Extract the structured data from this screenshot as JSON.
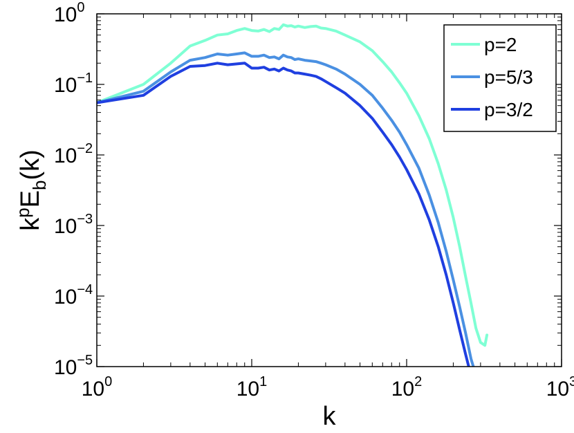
{
  "chart_data": {
    "type": "line",
    "title": "",
    "xlabel": "k",
    "ylabel": {
      "base": "k",
      "sup": "p",
      "mid": "E",
      "sub": "b",
      "tail": "(k)"
    },
    "x_scale": "log",
    "y_scale": "log",
    "xlim": [
      1,
      1000
    ],
    "ylim": [
      1e-05,
      1
    ],
    "x_ticks": [
      {
        "value": 1,
        "base": "10",
        "exp": "0"
      },
      {
        "value": 10,
        "base": "10",
        "exp": "1"
      },
      {
        "value": 100,
        "base": "10",
        "exp": "2"
      },
      {
        "value": 1000,
        "base": "10",
        "exp": "3"
      }
    ],
    "y_ticks": [
      {
        "value": 1,
        "base": "10",
        "exp": "0"
      },
      {
        "value": 0.1,
        "base": "10",
        "exp": "−1"
      },
      {
        "value": 0.01,
        "base": "10",
        "exp": "−2"
      },
      {
        "value": 0.001,
        "base": "10",
        "exp": "−3"
      },
      {
        "value": 0.0001,
        "base": "10",
        "exp": "−4"
      },
      {
        "value": 1e-05,
        "base": "10",
        "exp": "−5"
      }
    ],
    "grid": false,
    "legend": {
      "position": "top-right"
    },
    "series": [
      {
        "name": "p=2",
        "color": "#7fffd4",
        "points": [
          [
            1,
            0.055
          ],
          [
            2,
            0.1
          ],
          [
            3,
            0.2
          ],
          [
            4,
            0.35
          ],
          [
            5,
            0.42
          ],
          [
            6,
            0.5
          ],
          [
            7,
            0.52
          ],
          [
            8,
            0.58
          ],
          [
            9,
            0.62
          ],
          [
            10,
            0.58
          ],
          [
            11,
            0.57
          ],
          [
            12,
            0.6
          ],
          [
            13,
            0.56
          ],
          [
            14,
            0.62
          ],
          [
            15,
            0.6
          ],
          [
            16,
            0.7
          ],
          [
            17,
            0.67
          ],
          [
            18,
            0.68
          ],
          [
            19,
            0.65
          ],
          [
            20,
            0.67
          ],
          [
            22,
            0.64
          ],
          [
            24,
            0.66
          ],
          [
            26,
            0.67
          ],
          [
            28,
            0.63
          ],
          [
            30,
            0.62
          ],
          [
            35,
            0.57
          ],
          [
            40,
            0.5
          ],
          [
            50,
            0.4
          ],
          [
            60,
            0.3
          ],
          [
            70,
            0.21
          ],
          [
            80,
            0.15
          ],
          [
            90,
            0.105
          ],
          [
            100,
            0.075
          ],
          [
            120,
            0.036
          ],
          [
            140,
            0.017
          ],
          [
            160,
            0.0075
          ],
          [
            180,
            0.0032
          ],
          [
            200,
            0.0013
          ],
          [
            220,
            0.0005
          ],
          [
            240,
            0.00019
          ],
          [
            260,
            8e-05
          ],
          [
            280,
            3.5e-05
          ],
          [
            300,
            2.2e-05
          ],
          [
            320,
            2e-05
          ],
          [
            330,
            2.8e-05
          ]
        ]
      },
      {
        "name": "p=5/3",
        "color": "#4a90e2",
        "points": [
          [
            1,
            0.055
          ],
          [
            2,
            0.08
          ],
          [
            3,
            0.15
          ],
          [
            4,
            0.22
          ],
          [
            5,
            0.24
          ],
          [
            6,
            0.27
          ],
          [
            7,
            0.26
          ],
          [
            8,
            0.27
          ],
          [
            9,
            0.28
          ],
          [
            10,
            0.25
          ],
          [
            11,
            0.25
          ],
          [
            12,
            0.26
          ],
          [
            13,
            0.24
          ],
          [
            14,
            0.245
          ],
          [
            15,
            0.23
          ],
          [
            16,
            0.26
          ],
          [
            17,
            0.245
          ],
          [
            18,
            0.24
          ],
          [
            19,
            0.225
          ],
          [
            20,
            0.23
          ],
          [
            22,
            0.22
          ],
          [
            24,
            0.215
          ],
          [
            26,
            0.21
          ],
          [
            28,
            0.2
          ],
          [
            30,
            0.19
          ],
          [
            35,
            0.165
          ],
          [
            40,
            0.14
          ],
          [
            50,
            0.1
          ],
          [
            60,
            0.07
          ],
          [
            70,
            0.046
          ],
          [
            80,
            0.031
          ],
          [
            90,
            0.021
          ],
          [
            100,
            0.014
          ],
          [
            120,
            0.0065
          ],
          [
            140,
            0.0027
          ],
          [
            160,
            0.0011
          ],
          [
            180,
            0.00043
          ],
          [
            200,
            0.00017
          ],
          [
            220,
            7e-05
          ],
          [
            240,
            3e-05
          ],
          [
            260,
            1.3e-05
          ],
          [
            280,
            7.5e-06
          ]
        ]
      },
      {
        "name": "p=3/2",
        "color": "#1f3fe0",
        "points": [
          [
            1,
            0.055
          ],
          [
            2,
            0.07
          ],
          [
            3,
            0.13
          ],
          [
            4,
            0.18
          ],
          [
            5,
            0.185
          ],
          [
            6,
            0.2
          ],
          [
            7,
            0.19
          ],
          [
            8,
            0.195
          ],
          [
            9,
            0.2
          ],
          [
            10,
            0.17
          ],
          [
            11,
            0.17
          ],
          [
            12,
            0.175
          ],
          [
            13,
            0.16
          ],
          [
            14,
            0.165
          ],
          [
            15,
            0.155
          ],
          [
            16,
            0.17
          ],
          [
            17,
            0.16
          ],
          [
            18,
            0.155
          ],
          [
            19,
            0.145
          ],
          [
            20,
            0.145
          ],
          [
            22,
            0.14
          ],
          [
            24,
            0.135
          ],
          [
            26,
            0.13
          ],
          [
            28,
            0.12
          ],
          [
            30,
            0.11
          ],
          [
            35,
            0.09
          ],
          [
            40,
            0.075
          ],
          [
            50,
            0.05
          ],
          [
            60,
            0.033
          ],
          [
            70,
            0.021
          ],
          [
            80,
            0.014
          ],
          [
            90,
            0.0093
          ],
          [
            100,
            0.0062
          ],
          [
            120,
            0.0028
          ],
          [
            140,
            0.0012
          ],
          [
            160,
            0.0005
          ],
          [
            180,
            0.0002
          ],
          [
            200,
            8e-05
          ],
          [
            220,
            3.3e-05
          ],
          [
            240,
            1.5e-05
          ],
          [
            260,
            7.5e-06
          ]
        ]
      }
    ]
  }
}
